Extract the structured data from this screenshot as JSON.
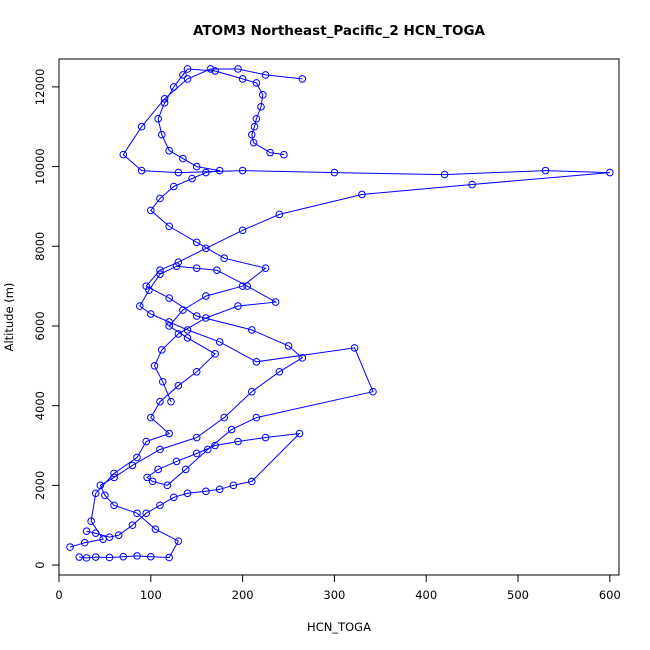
{
  "chart_data": {
    "type": "scatter",
    "title": "ATOM3 Northeast_Pacific_2 HCN_TOGA",
    "xlabel": "HCN_TOGA",
    "ylabel": "Altitude (m)",
    "xlim": [
      0,
      610
    ],
    "ylim": [
      -250,
      12700
    ],
    "x_ticks": [
      0,
      100,
      200,
      300,
      400,
      500,
      600
    ],
    "y_ticks": [
      0,
      2000,
      4000,
      6000,
      8000,
      10000,
      12000
    ],
    "x_tick_labels": [
      "0",
      "100",
      "200",
      "300",
      "400",
      "500",
      "600"
    ],
    "y_tick_labels": [
      "0",
      "2000",
      "4000",
      "6000",
      "8000",
      "10000",
      "12000"
    ],
    "grid": false,
    "legend": "none",
    "marker": "open-circle",
    "line": true,
    "colors": {
      "series": "#0000ff",
      "axes": "#000000",
      "background": "#ffffff"
    },
    "series": [
      {
        "x": [
          22,
          30,
          40,
          55,
          70,
          85,
          100,
          120,
          130,
          105,
          85,
          60,
          50,
          45,
          60,
          80,
          110,
          150,
          180,
          210,
          240,
          265,
          250,
          210,
          150,
          120,
          95,
          110,
          130,
          160,
          200,
          240,
          330,
          450,
          600,
          530,
          420,
          300,
          200,
          130,
          90,
          70,
          90,
          115,
          140,
          165,
          195,
          225,
          265
        ],
        "y": [
          200,
          180,
          200,
          190,
          210,
          230,
          210,
          190,
          600,
          900,
          1300,
          1500,
          1750,
          2000,
          2200,
          2500,
          2900,
          3200,
          3700,
          4350,
          4850,
          5200,
          5500,
          5900,
          6250,
          6700,
          7000,
          7400,
          7600,
          7950,
          8400,
          8800,
          9300,
          9550,
          9850,
          9900,
          9800,
          9850,
          9900,
          9850,
          9900,
          10300,
          11000,
          11700,
          12200,
          12450,
          12450,
          12300,
          12200
        ]
      },
      {
        "x": [
          12,
          28,
          48,
          35,
          40,
          60,
          85,
          95,
          120,
          100,
          110,
          130,
          150,
          170,
          140,
          120,
          135,
          160,
          200,
          225,
          180,
          150,
          120,
          100,
          110,
          125,
          145,
          160,
          175,
          150,
          135,
          120,
          112,
          108,
          115,
          125,
          135,
          140,
          170,
          200,
          215,
          222,
          220,
          215,
          213,
          210,
          212,
          230,
          245
        ],
        "y": [
          450,
          560,
          650,
          1100,
          1800,
          2300,
          2700,
          3100,
          3300,
          3700,
          4100,
          4500,
          4850,
          5300,
          5700,
          6000,
          6400,
          6750,
          7000,
          7450,
          7700,
          8100,
          8500,
          8900,
          9200,
          9500,
          9700,
          9850,
          9900,
          10000,
          10200,
          10400,
          10800,
          11200,
          11600,
          12000,
          12300,
          12450,
          12400,
          12200,
          12100,
          11800,
          11500,
          11200,
          11000,
          10800,
          10600,
          10350,
          10300
        ]
      },
      {
        "x": [
          30,
          40,
          55,
          65,
          80,
          95,
          110,
          125,
          140,
          160,
          175,
          190,
          210,
          262,
          225,
          195,
          170,
          150,
          128,
          108,
          96,
          102,
          118,
          138,
          162,
          188,
          215,
          342,
          322,
          215,
          175,
          140,
          120,
          100,
          88,
          98,
          110,
          128,
          150,
          172,
          205,
          236,
          195,
          160,
          130,
          112,
          104,
          113,
          122
        ],
        "y": [
          850,
          800,
          700,
          750,
          1000,
          1300,
          1500,
          1700,
          1800,
          1850,
          1900,
          2000,
          2100,
          3300,
          3200,
          3100,
          3000,
          2800,
          2600,
          2400,
          2200,
          2100,
          2000,
          2400,
          2900,
          3400,
          3700,
          4350,
          5450,
          5100,
          5600,
          5900,
          6100,
          6300,
          6500,
          6900,
          7300,
          7500,
          7450,
          7400,
          7000,
          6600,
          6500,
          6200,
          5800,
          5400,
          5000,
          4600,
          4100
        ]
      }
    ]
  }
}
